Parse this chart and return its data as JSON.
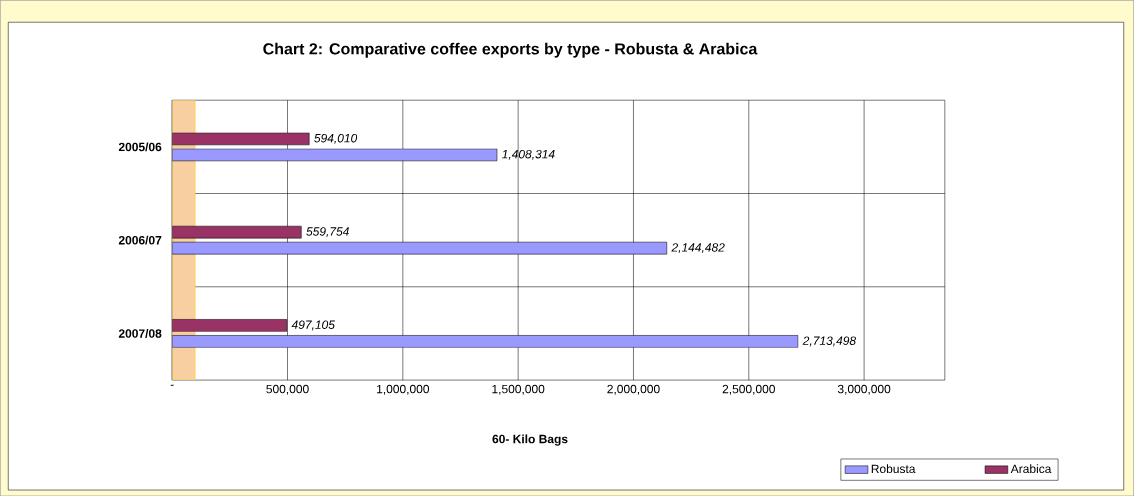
{
  "chart_data": {
    "type": "bar",
    "orientation": "horizontal",
    "title": "Chart 2: Comparative coffee exports by type - Robusta & Arabica",
    "xlabel": "60- Kilo Bags",
    "categories": [
      "2005/06",
      "2006/07",
      "2007/08"
    ],
    "series": [
      {
        "name": "Robusta",
        "color": "#9999ff",
        "values": [
          1408314,
          2144482,
          2713498
        ],
        "value_labels": [
          "1,408,314",
          "2,144,482",
          "2,713,498"
        ]
      },
      {
        "name": "Arabica",
        "color": "#993366",
        "values": [
          594010,
          559754,
          497105
        ],
        "value_labels": [
          "594,010",
          "559,754",
          "497,105"
        ]
      }
    ],
    "xlim": [
      0,
      3350000
    ],
    "xticks": [
      {
        "value": 0,
        "label": "-"
      },
      {
        "value": 500000,
        "label": "500,000"
      },
      {
        "value": 1000000,
        "label": "1,000,000"
      },
      {
        "value": 1500000,
        "label": "1,500,000"
      },
      {
        "value": 2000000,
        "label": "2,000,000"
      },
      {
        "value": 2500000,
        "label": "2,500,000"
      },
      {
        "value": 3000000,
        "label": "3,000,000"
      }
    ],
    "bands": [
      {
        "axis": "x",
        "from": 0,
        "to": 100000,
        "color": "#f8cfa0"
      }
    ],
    "grid": true,
    "legend": "bottom right"
  }
}
